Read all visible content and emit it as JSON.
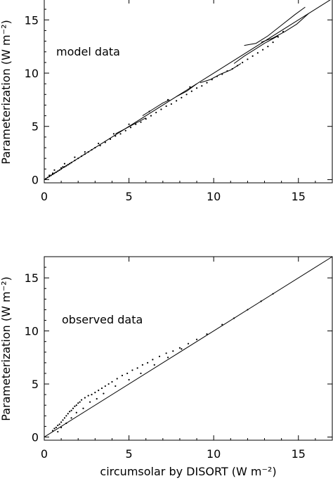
{
  "chart_data": [
    {
      "type": "scatter",
      "annotation": "model data",
      "xlabel": "",
      "ylabel": "Parameterization (W m⁻²)",
      "xlim": [
        0,
        17
      ],
      "ylim": [
        -0.3,
        17
      ],
      "xticks": [
        "0",
        "5",
        "10",
        "15"
      ],
      "yticks": [
        "0",
        "5",
        "10",
        "15"
      ],
      "grid": false,
      "reference_line": {
        "x": [
          0,
          17
        ],
        "y": [
          0,
          17
        ]
      },
      "series": [
        {
          "kind": "points",
          "x": [
            0.1,
            0.2,
            0.3,
            0.3,
            0.4,
            0.5,
            0.5,
            0.6,
            0.7,
            0.8,
            0.9,
            1.0,
            1.0,
            1.1,
            1.2,
            1.3,
            1.4,
            1.5,
            1.6,
            1.8,
            2.0,
            2.2,
            2.4,
            2.6,
            2.8,
            3.0,
            3.3,
            3.6,
            3.9,
            4.2,
            4.5,
            4.8,
            5.1,
            5.4,
            5.7,
            6.0,
            6.3,
            6.6,
            6.9,
            7.2,
            7.5,
            7.8,
            8.1,
            8.4,
            8.7,
            9.0,
            9.3,
            9.6,
            9.9,
            10.2,
            10.5,
            10.8,
            11.1,
            11.4,
            11.7,
            12.0,
            12.3,
            12.6,
            12.9,
            13.2,
            13.5,
            13.8,
            14.1,
            0.6,
            1.2,
            1.8,
            2.4,
            3.2,
            4.1,
            5.0,
            6.2,
            7.3,
            8.6
          ],
          "y": [
            0.1,
            0.2,
            0.3,
            0.4,
            0.4,
            0.5,
            0.6,
            0.6,
            0.7,
            0.8,
            0.9,
            1.0,
            1.1,
            1.2,
            1.2,
            1.3,
            1.4,
            1.5,
            1.6,
            1.8,
            2.0,
            2.2,
            2.4,
            2.6,
            2.8,
            3.0,
            3.2,
            3.5,
            3.8,
            4.1,
            4.3,
            4.6,
            4.9,
            5.2,
            5.4,
            5.7,
            6.0,
            6.3,
            6.6,
            6.9,
            7.1,
            7.4,
            7.7,
            8.0,
            8.3,
            8.6,
            8.8,
            9.1,
            9.4,
            9.7,
            9.9,
            10.2,
            10.4,
            10.7,
            11.0,
            11.3,
            11.6,
            11.9,
            12.2,
            12.5,
            12.9,
            13.4,
            13.9,
            0.9,
            1.5,
            2.1,
            2.6,
            3.4,
            4.3,
            5.2,
            6.4,
            7.5,
            8.7
          ]
        },
        {
          "kind": "curve",
          "x": [
            9.2,
            9.8,
            10.4,
            11.0,
            11.6
          ],
          "y": [
            9.1,
            9.4,
            9.9,
            10.3,
            10.9
          ]
        },
        {
          "kind": "curve",
          "x": [
            11.2,
            11.8,
            12.4,
            13.0,
            13.8
          ],
          "y": [
            10.9,
            11.6,
            12.2,
            12.8,
            13.5
          ]
        },
        {
          "kind": "curve",
          "x": [
            11.8,
            12.5,
            13.2,
            14.0,
            14.8,
            15.4
          ],
          "y": [
            12.6,
            12.8,
            13.5,
            14.5,
            15.5,
            16.2
          ]
        },
        {
          "kind": "curve",
          "x": [
            12.8,
            13.5,
            14.2,
            14.9,
            15.6
          ],
          "y": [
            12.9,
            13.3,
            13.9,
            14.6,
            15.6
          ]
        },
        {
          "kind": "curve",
          "x": [
            4.2,
            4.8,
            5.4,
            6.0
          ],
          "y": [
            4.3,
            4.8,
            5.3,
            5.8
          ]
        },
        {
          "kind": "curve",
          "x": [
            5.8,
            6.4,
            7.0,
            7.4
          ],
          "y": [
            6.0,
            6.6,
            7.2,
            7.5
          ]
        },
        {
          "kind": "curve",
          "x": [
            7.8,
            8.4,
            9.0
          ],
          "y": [
            7.8,
            8.3,
            9.0
          ]
        }
      ]
    },
    {
      "type": "scatter",
      "annotation": "observed data",
      "xlabel": "circumsolar by DISORT (W m⁻²)",
      "ylabel": "Parameterization (W m⁻²)",
      "xlim": [
        0,
        17
      ],
      "ylim": [
        -0.3,
        17
      ],
      "xticks": [
        "0",
        "5",
        "10",
        "15"
      ],
      "yticks": [
        "0",
        "5",
        "10",
        "15"
      ],
      "grid": false,
      "reference_line": {
        "x": [
          0,
          17
        ],
        "y": [
          0,
          17
        ]
      },
      "series": [
        {
          "kind": "points",
          "x": [
            0.5,
            0.6,
            0.7,
            0.8,
            0.9,
            1.0,
            1.1,
            1.2,
            1.3,
            1.4,
            1.5,
            1.6,
            1.7,
            1.8,
            1.9,
            2.0,
            2.1,
            2.2,
            2.4,
            2.6,
            2.8,
            3.0,
            3.2,
            3.4,
            3.6,
            3.8,
            4.0,
            4.3,
            4.6,
            4.9,
            5.2,
            5.5,
            5.8,
            6.1,
            6.4,
            6.8,
            7.2,
            7.6,
            8.0,
            8.5,
            9.0,
            9.6,
            10.5,
            11.2,
            12.0,
            12.8,
            13.5,
            0.8,
            1.0,
            1.3,
            1.6,
            1.9,
            2.3,
            2.7,
            3.1,
            3.5,
            4.2,
            5.0,
            5.7,
            6.5,
            7.3,
            8.1
          ],
          "y": [
            0.6,
            0.8,
            0.9,
            1.1,
            1.2,
            1.4,
            1.6,
            1.8,
            2.0,
            2.2,
            2.4,
            2.5,
            2.7,
            2.9,
            3.0,
            3.2,
            3.3,
            3.5,
            3.7,
            3.9,
            4.0,
            4.2,
            4.4,
            4.6,
            4.8,
            5.0,
            5.2,
            5.5,
            5.8,
            6.0,
            6.3,
            6.5,
            6.8,
            7.0,
            7.3,
            7.6,
            7.9,
            8.1,
            8.4,
            8.8,
            9.2,
            9.7,
            10.6,
            11.2,
            12.0,
            12.8,
            13.5,
            0.5,
            0.9,
            1.3,
            1.8,
            2.3,
            2.7,
            3.3,
            3.6,
            4.1,
            4.8,
            5.4,
            6.0,
            6.8,
            7.5,
            8.3
          ]
        }
      ]
    }
  ]
}
